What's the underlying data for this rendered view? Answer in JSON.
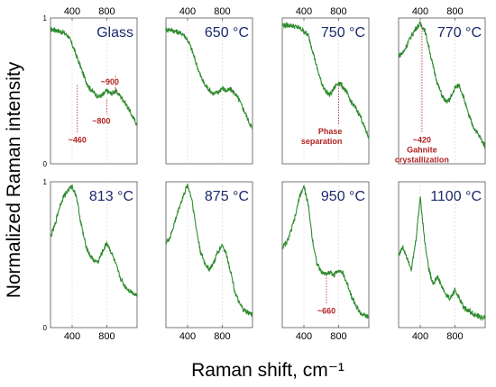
{
  "figure": {
    "ylabel": "Normalized Raman intensity",
    "xlabel": "Raman shift, cm⁻¹",
    "xticks": [
      "400",
      "800"
    ],
    "yticks": [
      "0",
      "1"
    ],
    "colors": {
      "line": "#2e8b2e",
      "title": "#1a2a6b",
      "annotation": "#b22222",
      "frame": "#555555"
    }
  },
  "chart_data": [
    {
      "type": "line",
      "title": "Glass",
      "xlim": [
        150,
        1150
      ],
      "ylim": [
        0,
        1
      ],
      "x": [
        150,
        200,
        250,
        300,
        350,
        400,
        450,
        500,
        550,
        600,
        650,
        700,
        750,
        800,
        850,
        900,
        950,
        1000,
        1050,
        1100,
        1150
      ],
      "y": [
        0.92,
        0.92,
        0.91,
        0.9,
        0.88,
        0.82,
        0.74,
        0.66,
        0.58,
        0.52,
        0.49,
        0.46,
        0.47,
        0.5,
        0.48,
        0.5,
        0.47,
        0.43,
        0.38,
        0.32,
        0.27
      ],
      "annotations": [
        {
          "text": "~460",
          "x": 460,
          "y": 0.54,
          "label_y": 0.2
        },
        {
          "text": "~800",
          "x": 800,
          "y": 0.44,
          "label_y": 0.33
        },
        {
          "text": "~900",
          "x": 900,
          "y": 0.48,
          "label_y": 0.6
        }
      ]
    },
    {
      "type": "line",
      "title": "650 °C",
      "xlim": [
        150,
        1150
      ],
      "ylim": [
        0,
        1
      ],
      "x": [
        150,
        200,
        250,
        300,
        350,
        400,
        450,
        500,
        550,
        600,
        650,
        700,
        750,
        800,
        850,
        900,
        950,
        1000,
        1050,
        1100,
        1150
      ],
      "y": [
        0.92,
        0.92,
        0.91,
        0.9,
        0.89,
        0.85,
        0.78,
        0.69,
        0.6,
        0.54,
        0.51,
        0.48,
        0.49,
        0.52,
        0.5,
        0.51,
        0.48,
        0.43,
        0.37,
        0.3,
        0.24
      ],
      "annotations": []
    },
    {
      "type": "line",
      "title": "750 °C",
      "xlim": [
        150,
        1150
      ],
      "ylim": [
        0,
        1
      ],
      "x": [
        150,
        200,
        250,
        300,
        350,
        400,
        450,
        500,
        550,
        600,
        650,
        700,
        750,
        800,
        850,
        900,
        950,
        1000,
        1050,
        1100,
        1150
      ],
      "y": [
        0.95,
        0.95,
        0.95,
        0.94,
        0.93,
        0.91,
        0.88,
        0.78,
        0.66,
        0.56,
        0.5,
        0.47,
        0.52,
        0.56,
        0.53,
        0.48,
        0.42,
        0.38,
        0.33,
        0.25,
        0.18
      ],
      "annotations": [
        {
          "text": "Phase",
          "text2": "separation",
          "x": 800,
          "y": 0.54,
          "label_y": 0.26
        }
      ]
    },
    {
      "type": "line",
      "title": "770 °C",
      "xlim": [
        150,
        1150
      ],
      "ylim": [
        0,
        1
      ],
      "x": [
        150,
        200,
        250,
        300,
        350,
        400,
        450,
        500,
        550,
        600,
        650,
        700,
        750,
        800,
        850,
        900,
        950,
        1000,
        1050,
        1100,
        1150
      ],
      "y": [
        0.74,
        0.76,
        0.82,
        0.88,
        0.93,
        0.96,
        0.92,
        0.8,
        0.66,
        0.55,
        0.47,
        0.42,
        0.45,
        0.52,
        0.54,
        0.46,
        0.35,
        0.27,
        0.22,
        0.17,
        0.12
      ],
      "annotations": [
        {
          "text": "~420",
          "text2": "Gahnite",
          "text3": "crystallization",
          "x": 420,
          "y": 0.95,
          "label_y": 0.2
        }
      ]
    },
    {
      "type": "line",
      "title": "813 °C",
      "xlim": [
        150,
        1150
      ],
      "ylim": [
        0,
        1
      ],
      "x": [
        150,
        200,
        250,
        300,
        350,
        400,
        450,
        500,
        550,
        600,
        650,
        700,
        750,
        800,
        850,
        900,
        950,
        1000,
        1050,
        1100,
        1150
      ],
      "y": [
        0.62,
        0.7,
        0.82,
        0.9,
        0.94,
        0.97,
        0.9,
        0.72,
        0.58,
        0.5,
        0.46,
        0.45,
        0.52,
        0.58,
        0.52,
        0.44,
        0.35,
        0.29,
        0.26,
        0.24,
        0.22
      ],
      "annotations": []
    },
    {
      "type": "line",
      "title": "875 °C",
      "xlim": [
        150,
        1150
      ],
      "ylim": [
        0,
        1
      ],
      "x": [
        150,
        200,
        250,
        300,
        350,
        400,
        450,
        500,
        550,
        600,
        650,
        700,
        750,
        800,
        850,
        900,
        950,
        1000,
        1050,
        1100,
        1150
      ],
      "y": [
        0.58,
        0.62,
        0.72,
        0.82,
        0.9,
        0.98,
        0.88,
        0.68,
        0.52,
        0.44,
        0.4,
        0.44,
        0.52,
        0.57,
        0.5,
        0.38,
        0.24,
        0.16,
        0.12,
        0.1,
        0.09
      ],
      "annotations": []
    },
    {
      "type": "line",
      "title": "950 °C",
      "xlim": [
        150,
        1150
      ],
      "ylim": [
        0,
        1
      ],
      "x": [
        150,
        200,
        250,
        300,
        350,
        400,
        450,
        500,
        550,
        600,
        650,
        700,
        750,
        800,
        850,
        900,
        950,
        1000,
        1050,
        1100,
        1150
      ],
      "y": [
        0.55,
        0.58,
        0.66,
        0.76,
        0.9,
        0.97,
        0.84,
        0.6,
        0.44,
        0.38,
        0.37,
        0.38,
        0.36,
        0.4,
        0.37,
        0.3,
        0.22,
        0.15,
        0.1,
        0.08,
        0.07
      ],
      "annotations": [
        {
          "text": "~660",
          "x": 660,
          "y": 0.36,
          "label_y": 0.15
        }
      ]
    },
    {
      "type": "line",
      "title": "1100 °C",
      "xlim": [
        150,
        1150
      ],
      "ylim": [
        0,
        1
      ],
      "x": [
        150,
        200,
        250,
        300,
        350,
        400,
        450,
        500,
        550,
        600,
        650,
        700,
        750,
        800,
        850,
        900,
        950,
        1000,
        1050,
        1100,
        1150
      ],
      "y": [
        0.5,
        0.55,
        0.48,
        0.4,
        0.6,
        0.9,
        0.6,
        0.4,
        0.3,
        0.35,
        0.28,
        0.22,
        0.2,
        0.26,
        0.2,
        0.14,
        0.12,
        0.1,
        0.08,
        0.07,
        0.07
      ],
      "annotations": []
    }
  ]
}
